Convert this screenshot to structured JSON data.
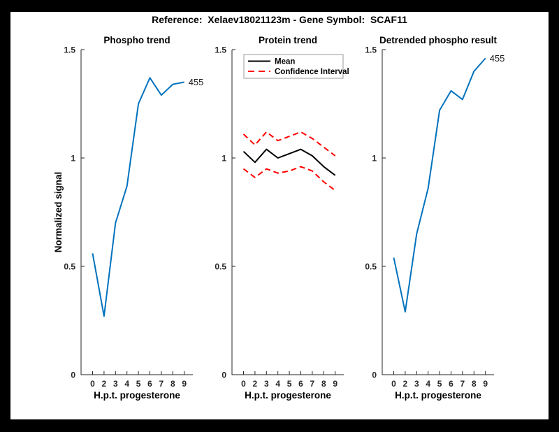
{
  "window": {
    "background": "#000000",
    "canvas_background": "#ffffff"
  },
  "figure_title": "Reference:  Xelaev18021123m - Gene Symbol:  SCAF11",
  "colors": {
    "blue": "#0072BD",
    "red": "#FF0000",
    "black": "#000000",
    "axis": "#262626",
    "legend_border": "#999999"
  },
  "chart_data": [
    {
      "type": "line",
      "title": "Phospho trend",
      "xlabel": "H.p.t. progesterone",
      "ylabel": "Normalized signal",
      "x_tick_labels": [
        "0",
        "2",
        "3",
        "4",
        "5",
        "6",
        "7",
        "8",
        "9"
      ],
      "y_ticks": [
        0,
        0.5,
        1,
        1.5
      ],
      "y_tick_labels": [
        "0",
        "0.5",
        "1",
        "1.5"
      ],
      "ylim": [
        0,
        1.5
      ],
      "grid": false,
      "legend": null,
      "series": [
        {
          "name": "phospho-signal",
          "color": "#0072BD",
          "dash": "solid",
          "values": [
            0.56,
            0.27,
            0.7,
            0.87,
            1.25,
            1.37,
            1.29,
            1.34,
            1.35
          ],
          "end_label": "455"
        }
      ]
    },
    {
      "type": "line",
      "title": "Protein trend",
      "xlabel": "H.p.t. progesterone",
      "ylabel": "",
      "x_tick_labels": [
        "0",
        "2",
        "3",
        "4",
        "5",
        "6",
        "7",
        "8",
        "9"
      ],
      "y_ticks": [
        0,
        0.5,
        1,
        1.5
      ],
      "y_tick_labels": [
        "0",
        "0.5",
        "1",
        "1.5"
      ],
      "ylim": [
        0,
        1.5
      ],
      "grid": false,
      "legend": {
        "position": "northwest",
        "entries": [
          {
            "label": "Mean",
            "color": "#000000",
            "dash": "solid"
          },
          {
            "label": "Confidence Interval",
            "color": "#FF0000",
            "dash": "dashed"
          }
        ]
      },
      "series": [
        {
          "name": "protein-mean",
          "color": "#000000",
          "dash": "solid",
          "values": [
            1.03,
            0.98,
            1.04,
            1.0,
            1.02,
            1.04,
            1.01,
            0.96,
            0.92
          ],
          "end_label": ""
        },
        {
          "name": "confidence-interval-upper",
          "color": "#FF0000",
          "dash": "dashed",
          "values": [
            1.11,
            1.06,
            1.12,
            1.08,
            1.1,
            1.12,
            1.09,
            1.05,
            1.01
          ],
          "end_label": ""
        },
        {
          "name": "confidence-interval-lower",
          "color": "#FF0000",
          "dash": "dashed",
          "values": [
            0.95,
            0.91,
            0.95,
            0.93,
            0.94,
            0.96,
            0.94,
            0.89,
            0.85
          ],
          "end_label": ""
        }
      ]
    },
    {
      "type": "line",
      "title": "Detrended phospho result",
      "xlabel": "H.p.t. progesterone",
      "ylabel": "",
      "x_tick_labels": [
        "0",
        "2",
        "3",
        "4",
        "5",
        "6",
        "7",
        "8",
        "9"
      ],
      "y_ticks": [
        0,
        0.5,
        1,
        1.5
      ],
      "y_tick_labels": [
        "0",
        "0.5",
        "1",
        "1.5"
      ],
      "ylim": [
        0,
        1.5
      ],
      "grid": false,
      "legend": null,
      "series": [
        {
          "name": "detrended-phospho-signal",
          "color": "#0072BD",
          "dash": "solid",
          "values": [
            0.54,
            0.29,
            0.65,
            0.86,
            1.22,
            1.31,
            1.27,
            1.4,
            1.46
          ],
          "end_label": "455"
        }
      ]
    }
  ]
}
